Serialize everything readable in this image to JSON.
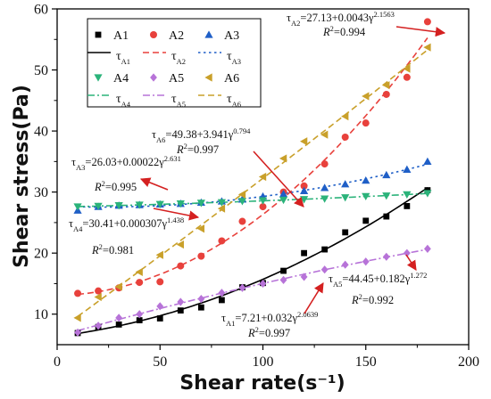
{
  "chart_data": {
    "type": "scatter",
    "xlabel": "Shear rate(s⁻¹)",
    "ylabel": "Shear stress(Pa)",
    "xlim": [
      0,
      200
    ],
    "ylim": [
      5,
      60
    ],
    "xticks": [
      0,
      50,
      100,
      150,
      200
    ],
    "yticks": [
      10,
      20,
      30,
      40,
      50,
      60
    ],
    "x": [
      10,
      20,
      30,
      40,
      50,
      60,
      70,
      80,
      90,
      100,
      110,
      120,
      130,
      140,
      150,
      160,
      170,
      180
    ],
    "series": [
      {
        "name": "A1",
        "fit_name": "τA1",
        "color": "#000000",
        "marker": "square",
        "line": "solid",
        "values": [
          6.9,
          7.9,
          8.3,
          9.0,
          9.3,
          10.6,
          11.1,
          12.3,
          14.4,
          15.1,
          17.1,
          20.0,
          20.6,
          23.4,
          25.3,
          26.0,
          27.7,
          30.3
        ],
        "fit": {
          "a": 7.21,
          "b": 0.032,
          "n": 2.0639
        },
        "equation": "τA1=7.21+0.032γ2.0639",
        "r2": "R2=0.997"
      },
      {
        "name": "A2",
        "fit_name": "τA2",
        "color": "#e8413c",
        "marker": "circle",
        "line": "dashed",
        "values": [
          13.4,
          13.8,
          14.3,
          15.2,
          15.3,
          17.9,
          19.5,
          22.0,
          25.2,
          27.6,
          30.0,
          31.0,
          34.6,
          39.0,
          41.3,
          46.0,
          48.8,
          57.9
        ],
        "fit": {
          "a": 27.13,
          "b": 0.0043,
          "n": 2.1563
        },
        "equation": "τA2=27.13+0.0043γ2.1563",
        "r2": "R2=0.994"
      },
      {
        "name": "A3",
        "fit_name": "τA3",
        "color": "#1f5fc7",
        "marker": "triangle-up",
        "line": "dotted",
        "values": [
          27.0,
          27.6,
          27.8,
          27.9,
          28.0,
          28.1,
          28.3,
          28.5,
          28.8,
          29.3,
          29.7,
          30.2,
          30.7,
          31.3,
          31.9,
          32.8,
          33.7,
          35.0
        ],
        "fit": {
          "a": 26.03,
          "b": 0.00022,
          "n": 2.631
        },
        "equation": "τA3=26.03+0.00022γ2.631",
        "r2": "R2=0.995"
      },
      {
        "name": "A4",
        "fit_name": "τA4",
        "color": "#2bb37a",
        "marker": "triangle-down",
        "line": "dashdot",
        "values": [
          27.6,
          27.7,
          27.8,
          27.9,
          28.0,
          28.1,
          28.2,
          28.3,
          28.5,
          28.6,
          28.7,
          28.8,
          28.9,
          29.1,
          29.3,
          29.4,
          29.6,
          29.8
        ],
        "fit": {
          "a": 30.41,
          "b": 0.000307,
          "n": 1.438
        },
        "equation": "τA4=30.41+0.000307γ1.438",
        "r2": "R2=0.981"
      },
      {
        "name": "A5",
        "fit_name": "τA5",
        "color": "#b773d8",
        "marker": "diamond",
        "line": "dashdot",
        "values": [
          7.0,
          8.1,
          9.4,
          10.0,
          11.3,
          12.0,
          12.5,
          13.5,
          14.3,
          15.0,
          15.6,
          16.1,
          17.3,
          18.1,
          18.6,
          19.4,
          20.0,
          20.7
        ],
        "fit": {
          "a": 44.45,
          "b": 0.182,
          "n": 1.272
        },
        "equation": "τA5=44.45+0.182γ1.272",
        "r2": "R2=0.992"
      },
      {
        "name": "A6",
        "fit_name": "τA6",
        "color": "#c9a02a",
        "marker": "triangle-left",
        "line": "dashed",
        "values": [
          9.4,
          12.8,
          14.5,
          16.9,
          19.7,
          21.4,
          24.0,
          27.3,
          29.6,
          32.5,
          35.5,
          38.3,
          39.4,
          42.4,
          45.7,
          47.5,
          50.2,
          53.7
        ],
        "fit": {
          "a": 49.38,
          "b": 3.941,
          "n": 0.794
        },
        "equation": "τA6=49.38+3.941γ0.794",
        "r2": "R2=0.997"
      }
    ],
    "legend": {
      "placement": "top-left"
    },
    "grid": false
  },
  "colors": {
    "arrow": "#d42020",
    "axis": "#000000"
  }
}
